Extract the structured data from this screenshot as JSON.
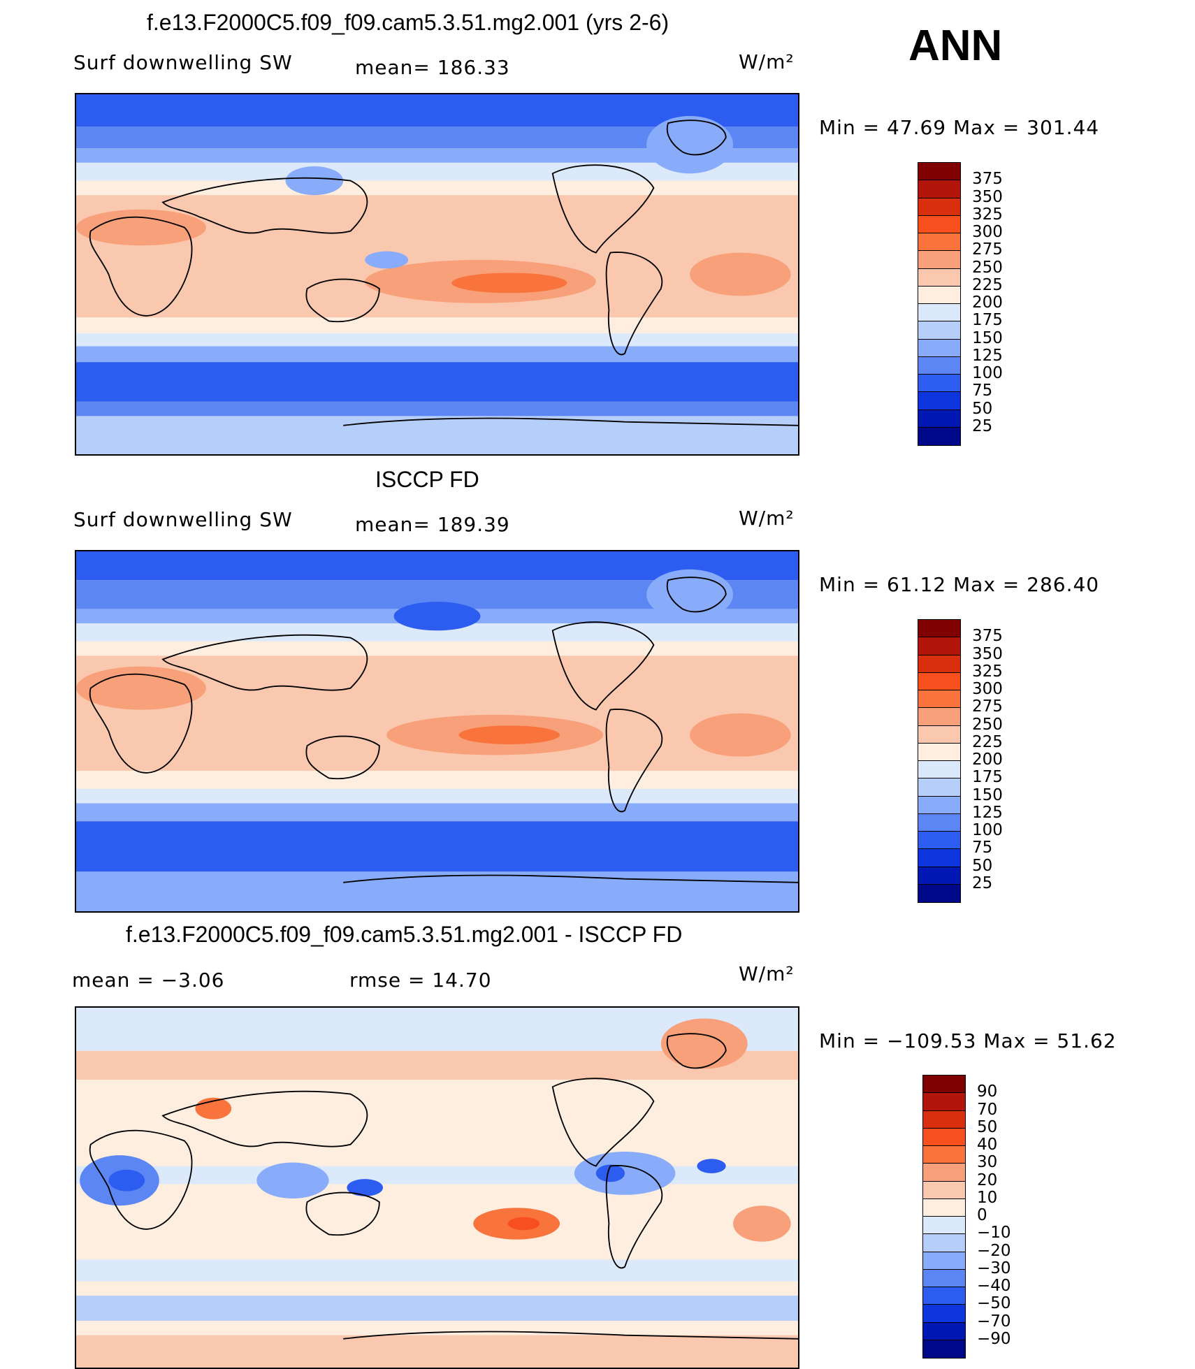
{
  "season": "ANN",
  "panels": [
    {
      "id": "model",
      "title": "f.e13.F2000C5.f09_f09.cam5.3.51.mg2.001 (yrs 2-6)",
      "left_label": "Surf  downwelling  SW",
      "center_label": "mean=  186.33",
      "units": "W/m²",
      "minmax": "Min  =    47.69  Max  =  301.44",
      "colorbar": {
        "levels": [
          "375",
          "350",
          "325",
          "300",
          "275",
          "250",
          "225",
          "200",
          "175",
          "150",
          "125",
          "100",
          "75",
          "50",
          "25"
        ],
        "colors": [
          "#7f0000",
          "#b2160a",
          "#d8300f",
          "#f84f1e",
          "#f8743c",
          "#f8a079",
          "#fac8ae",
          "#fdeedf",
          "#dce9fb",
          "#b6cffa",
          "#88acfa",
          "#5b86f3",
          "#2d5cf0",
          "#0e36de",
          "#0017b4",
          "#00088a"
        ]
      }
    },
    {
      "id": "obs",
      "title": "ISCCP FD",
      "left_label": "Surf  downwelling  SW",
      "center_label": "mean=  189.39",
      "units": "W/m²",
      "minmax": "Min  =    61.12  Max  =  286.40",
      "colorbar": {
        "levels": [
          "375",
          "350",
          "325",
          "300",
          "275",
          "250",
          "225",
          "200",
          "175",
          "150",
          "125",
          "100",
          "75",
          "50",
          "25"
        ],
        "colors": [
          "#7f0000",
          "#b2160a",
          "#d8300f",
          "#f84f1e",
          "#f8743c",
          "#f8a079",
          "#fac8ae",
          "#fdeedf",
          "#dce9fb",
          "#b6cffa",
          "#88acfa",
          "#5b86f3",
          "#2d5cf0",
          "#0e36de",
          "#0017b4",
          "#00088a"
        ]
      }
    },
    {
      "id": "diff",
      "title": "f.e13.F2000C5.f09_f09.cam5.3.51.mg2.001 - ISCCP FD",
      "left_label": "mean  =    −3.06",
      "center_label": "rmse  =    14.70",
      "units": "W/m²",
      "minmax": "Min  = −109.53  Max  =    51.62",
      "colorbar": {
        "levels": [
          "90",
          "70",
          "50",
          "40",
          "30",
          "20",
          "10",
          "0",
          "−10",
          "−20",
          "−30",
          "−40",
          "−50",
          "−70",
          "−90"
        ],
        "colors": [
          "#7f0000",
          "#b2160a",
          "#d8300f",
          "#f84f1e",
          "#f8743c",
          "#f8a079",
          "#fac8ae",
          "#fdeedf",
          "#dce9fb",
          "#b6cffa",
          "#88acfa",
          "#5b86f3",
          "#2d5cf0",
          "#0e36de",
          "#0017b4",
          "#00088a"
        ]
      }
    }
  ]
}
